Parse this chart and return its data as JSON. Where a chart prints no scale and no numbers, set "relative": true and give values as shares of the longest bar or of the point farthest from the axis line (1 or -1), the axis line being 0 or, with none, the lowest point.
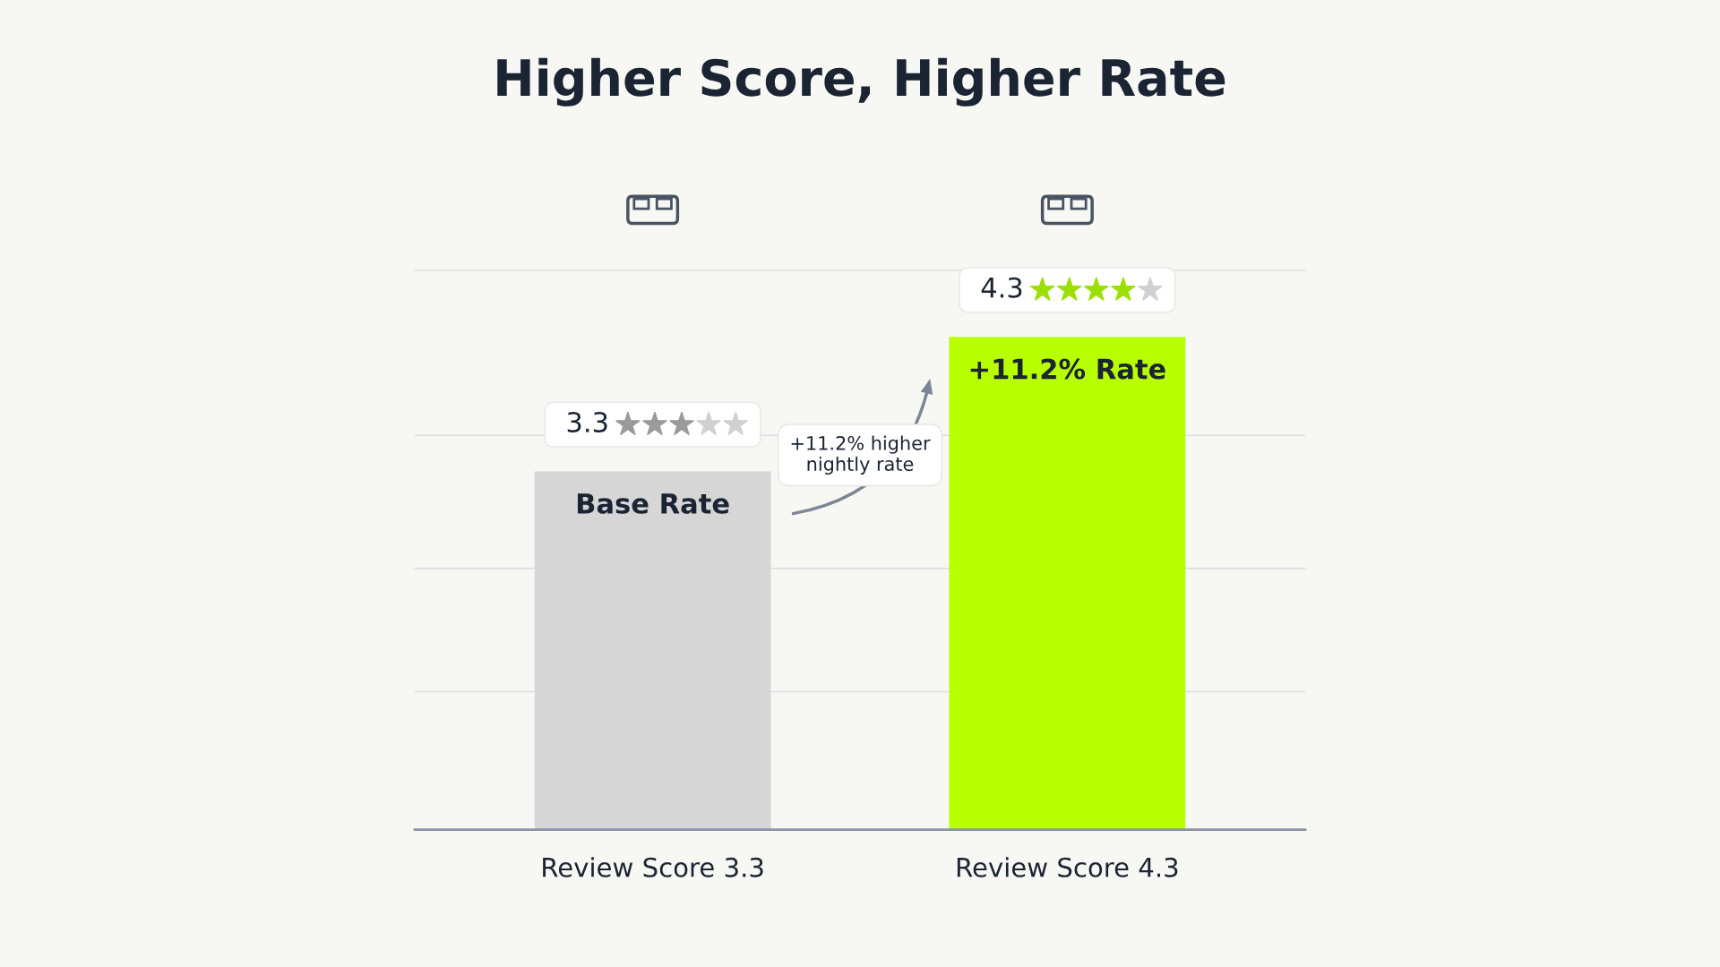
{
  "chart_data": {
    "type": "bar",
    "title": "Higher Score, Higher Rate",
    "relative": true,
    "categories": [
      "Review Score 3.3",
      "Review Score 4.3"
    ],
    "values": [
      0.727,
      1
    ],
    "colors": [
      "#d6d6d6",
      "#b8ff00"
    ],
    "annotations": [
      "Base Rate",
      "+11.2% Rate",
      {
        "text": "3.3",
        "x": "Review Score 3.3",
        "y": 0.727
      },
      {
        "text": "4.3",
        "x": "Review Score 4.3",
        "y": 1
      },
      "+11.2% higher\nnightly rate"
    ],
    "grid": "y"
  }
}
